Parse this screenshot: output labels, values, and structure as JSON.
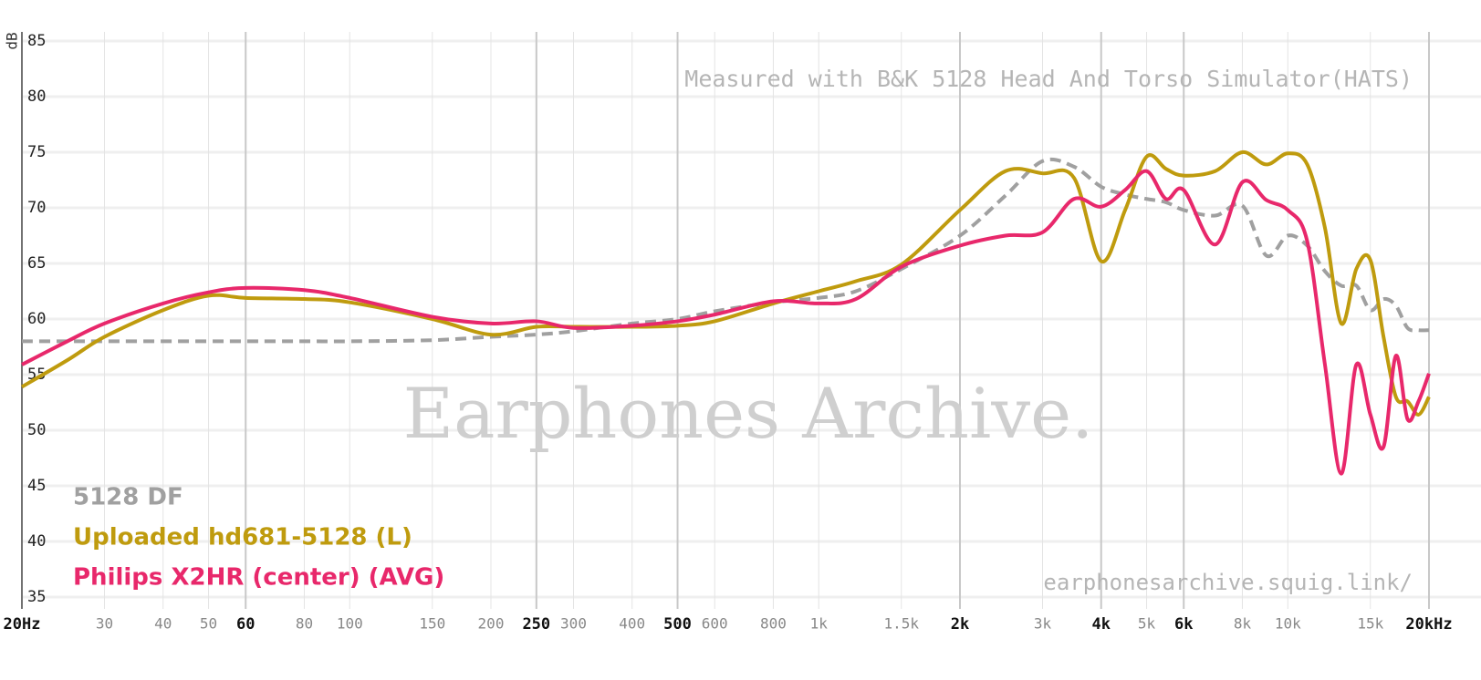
{
  "chart_data": {
    "type": "line",
    "y_axis_label": "dB",
    "annotations": [
      "Measured with B&K 5128 Head And Torso Simulator(HATS)",
      "Earphones Archive.",
      "earphonesarchive.squig.link/"
    ],
    "log_x": true,
    "grid": true,
    "legend_position": "bottom-left",
    "xlim": [
      20,
      20000
    ],
    "ylim": [
      35,
      85
    ],
    "yticks": [
      35,
      40,
      45,
      50,
      55,
      60,
      65,
      70,
      75,
      80,
      85
    ],
    "xticks": [
      {
        "value": 20,
        "label": "20Hz"
      },
      30,
      40,
      50,
      60,
      80,
      100,
      150,
      200,
      250,
      300,
      400,
      500,
      600,
      800,
      {
        "value": 1000,
        "label": "1k"
      },
      {
        "value": 1500,
        "label": "1.5k"
      },
      {
        "value": 2000,
        "label": "2k"
      },
      {
        "value": 3000,
        "label": "3k"
      },
      {
        "value": 4000,
        "label": "4k"
      },
      {
        "value": 5000,
        "label": "5k"
      },
      {
        "value": 6000,
        "label": "6k"
      },
      {
        "value": 8000,
        "label": "8k"
      },
      {
        "value": 10000,
        "label": "10k"
      },
      {
        "value": 15000,
        "label": "15k"
      },
      {
        "value": 20000,
        "label": "20kHz"
      }
    ],
    "bold_xticks": [
      20,
      60,
      250,
      500,
      2000,
      4000,
      6000,
      20000
    ],
    "x": [
      20,
      25,
      30,
      40,
      50,
      60,
      80,
      100,
      150,
      200,
      250,
      300,
      400,
      500,
      600,
      800,
      1000,
      1200,
      1500,
      2000,
      2500,
      3000,
      3500,
      4000,
      4500,
      5000,
      5500,
      6000,
      7000,
      8000,
      9000,
      10000,
      11000,
      12000,
      13000,
      14000,
      15000,
      16000,
      17000,
      18000,
      19000,
      20000
    ],
    "series": [
      {
        "name": "5128 DF",
        "color": "#a0a0a0",
        "dashed": true,
        "values": [
          58,
          58,
          58,
          58,
          58,
          58,
          58,
          58,
          58.1,
          58.4,
          58.6,
          58.9,
          59.6,
          60,
          60.7,
          61.5,
          61.9,
          62.5,
          64.5,
          67.5,
          71.1,
          74.2,
          73.7,
          71.9,
          71.2,
          70.8,
          70.5,
          69.8,
          69.3,
          70.2,
          65.7,
          67.5,
          66.6,
          64.3,
          63,
          63,
          60.8,
          61.8,
          61.2,
          59.2,
          59,
          59
        ]
      },
      {
        "name": "Uploaded hd681-5128 (L)",
        "color": "#bf9b0e",
        "dashed": false,
        "values": [
          53.9,
          56.3,
          58.4,
          60.8,
          62.1,
          61.9,
          61.8,
          61.5,
          60,
          58.6,
          59.3,
          59.3,
          59.3,
          59.4,
          59.8,
          61.4,
          62.5,
          63.4,
          64.9,
          69.8,
          73.3,
          73.1,
          72.7,
          65.2,
          69.8,
          74.6,
          73.5,
          72.9,
          73.3,
          75,
          73.9,
          74.9,
          73.9,
          68.2,
          59.6,
          64.5,
          65.3,
          58.4,
          53,
          52.6,
          51.4,
          53
        ]
      },
      {
        "name": "Philips X2HR (center) (AVG)",
        "color": "#e8286b",
        "dashed": false,
        "values": [
          55.9,
          58,
          59.6,
          61.4,
          62.4,
          62.8,
          62.6,
          61.9,
          60.2,
          59.6,
          59.8,
          59.2,
          59.4,
          59.8,
          60.4,
          61.6,
          61.4,
          61.8,
          64.7,
          66.6,
          67.5,
          67.8,
          70.8,
          70.1,
          71.6,
          73.3,
          70.8,
          71.6,
          66.7,
          72.3,
          70.7,
          69.8,
          67,
          55.9,
          46.1,
          55.9,
          51.4,
          48.5,
          56.7,
          51,
          52.6,
          55.1
        ]
      }
    ]
  }
}
